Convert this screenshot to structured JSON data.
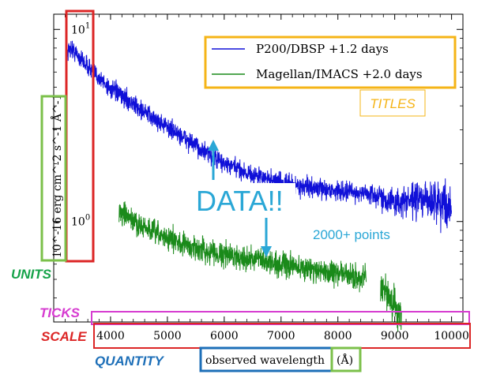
{
  "chart_data": {
    "type": "line",
    "title": "",
    "xlabel": "observed wavelength (Å)",
    "ylabel": "10^-16 erg cm^-2 s^-1 Å^-1",
    "xlim": [
      3000,
      10200
    ],
    "ylim": [
      0.3,
      12
    ],
    "yscale": "log",
    "grid": false,
    "legend_position": "top-right",
    "x_ticks": [
      {
        "value": 4000,
        "label": "4000"
      },
      {
        "value": 5000,
        "label": "5000"
      },
      {
        "value": 6000,
        "label": "6000"
      },
      {
        "value": 7000,
        "label": "7000"
      },
      {
        "value": 8000,
        "label": "8000"
      },
      {
        "value": 9000,
        "label": "9000"
      },
      {
        "value": 10000,
        "label": "10000"
      }
    ],
    "y_ticks": [
      {
        "value": 1,
        "base": "10",
        "exp": "0"
      },
      {
        "value": 10,
        "base": "10",
        "exp": "1"
      }
    ],
    "series": [
      {
        "name": "P200/DBSP +1.2 days",
        "color": "#1010d8",
        "noise": 0.055,
        "x": [
          3240,
          3300,
          3500,
          3800,
          4000,
          4300,
          4600,
          5000,
          5400,
          5700,
          6000,
          6500,
          7000,
          7500,
          8000,
          8500,
          8800,
          9000,
          9400,
          9700,
          10000
        ],
        "y": [
          7.6,
          8.0,
          6.9,
          5.6,
          4.9,
          4.3,
          3.7,
          3.1,
          2.6,
          2.25,
          2.0,
          1.75,
          1.6,
          1.5,
          1.45,
          1.4,
          1.33,
          1.25,
          1.3,
          1.28,
          1.2
        ]
      },
      {
        "name": "Magellan/IMACS +2.0 days",
        "color": "#1a8a1a",
        "noise": 0.07,
        "segments": [
          {
            "x": [
              4150,
              4300,
              4600,
              5000,
              5400,
              5800,
              6200,
              6600,
              7000,
              7400,
              7800,
              8100,
              8500
            ],
            "y": [
              1.12,
              1.05,
              0.92,
              0.82,
              0.74,
              0.69,
              0.66,
              0.63,
              0.6,
              0.57,
              0.55,
              0.53,
              0.5
            ]
          },
          {
            "x": [
              8750,
              8850,
              8950,
              9050,
              9120
            ],
            "y": [
              0.45,
              0.42,
              0.38,
              0.34,
              0.3
            ]
          }
        ]
      }
    ],
    "annotations": {
      "data_label": "DATA!!",
      "points_label": "2000+ points"
    }
  },
  "callouts": {
    "titles": {
      "text": "TITLES",
      "color": "#f5b417"
    },
    "units": {
      "text": "UNITS",
      "color": "#16a34a"
    },
    "ticks": {
      "text": "TICKS",
      "color": "#d63bd0"
    },
    "scale": {
      "text": "SCALE",
      "color": "#dc2626"
    },
    "quantity": {
      "text": "QUANTITY",
      "color": "#1d6fb8"
    },
    "data": {
      "color": "#2aa7d6"
    }
  },
  "axis_label_parts": {
    "quantity": "observed wavelength",
    "unit": "(Å)"
  }
}
